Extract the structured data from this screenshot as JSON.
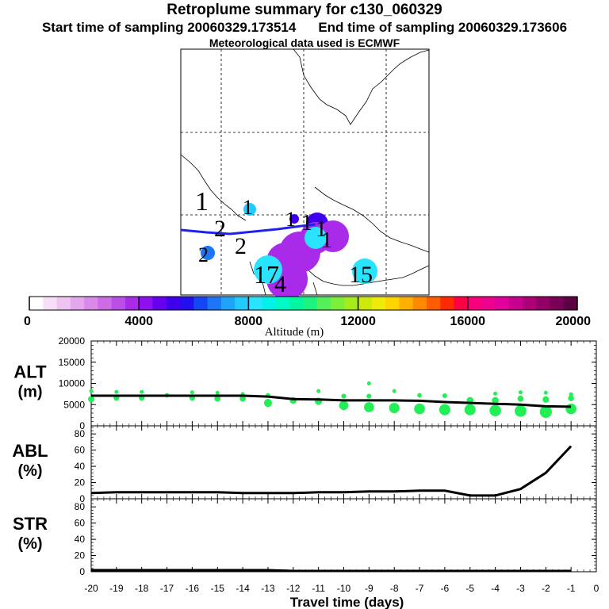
{
  "titles": {
    "line1": "Retroplume summary for c130_060329",
    "start_label": "Start time of sampling 20060329.173514",
    "end_label": "End time of sampling 20060329.173606",
    "line3": "Meteorological data used is ECMWF"
  },
  "map": {
    "labels": [
      "1",
      "1",
      "1",
      "2",
      "2",
      "2",
      "1",
      "1",
      "1",
      "17",
      "4",
      "15"
    ]
  },
  "colorbar": {
    "label": "Altitude (m)",
    "ticks": [
      "0",
      "4000",
      "8000",
      "12000",
      "16000",
      "20000"
    ],
    "min": 0,
    "max": 20000,
    "colors": [
      "#ffffff",
      "#f7e0f7",
      "#efc3ef",
      "#e4a6ec",
      "#d98ae8",
      "#cc6ce6",
      "#bb4ee6",
      "#aa2ae9",
      "#8f10ee",
      "#6600ee",
      "#3f00ee",
      "#2211ee",
      "#1446f4",
      "#1d76f8",
      "#1ea4fa",
      "#21cbfd",
      "#29e4ff",
      "#00f2e8",
      "#00f8c4",
      "#00f7a0",
      "#1cf47e",
      "#52f15a",
      "#7cef38",
      "#a6ec1c",
      "#cdea0c",
      "#efea07",
      "#ffd500",
      "#ffb000",
      "#ff8a00",
      "#ff5e00",
      "#ff2a00",
      "#ff0044",
      "#f7007a",
      "#ee0090",
      "#e0009e",
      "#c8008e",
      "#ad0078",
      "#920066",
      "#780055",
      "#5e0044"
    ]
  },
  "chart_data": [
    {
      "type": "scatter",
      "name": "ALT",
      "ylabel": "ALT\n(m)",
      "xlim": [
        -20,
        0
      ],
      "ylim": [
        0,
        20000
      ],
      "yticks": [
        "0",
        "5000",
        "10000",
        "15000",
        "20000"
      ],
      "line": {
        "x": [
          -20,
          -19,
          -18,
          -17,
          -16,
          -15,
          -14,
          -13,
          -12,
          -11,
          -10,
          -9,
          -8,
          -7,
          -6,
          -5,
          -4,
          -3,
          -2,
          -1
        ],
        "y": [
          7100,
          7100,
          7100,
          7100,
          7100,
          7100,
          7100,
          6900,
          6300,
          6200,
          6000,
          6000,
          6000,
          5900,
          5600,
          5400,
          5200,
          5000,
          4600,
          4500
        ]
      },
      "points": [
        {
          "x": -20,
          "y": 8200
        },
        {
          "x": -20,
          "y": 6300
        },
        {
          "x": -19,
          "y": 8000
        },
        {
          "x": -19,
          "y": 6600
        },
        {
          "x": -18,
          "y": 8000
        },
        {
          "x": -18,
          "y": 6600
        },
        {
          "x": -17,
          "y": 7200
        },
        {
          "x": -16,
          "y": 7900
        },
        {
          "x": -16,
          "y": 6600
        },
        {
          "x": -15,
          "y": 7800
        },
        {
          "x": -15,
          "y": 6400
        },
        {
          "x": -14,
          "y": 7500
        },
        {
          "x": -14,
          "y": 6400
        },
        {
          "x": -13,
          "y": 7200
        },
        {
          "x": -13,
          "y": 5400
        },
        {
          "x": -12,
          "y": 6000
        },
        {
          "x": -11,
          "y": 8200
        },
        {
          "x": -11,
          "y": 5800
        },
        {
          "x": -10,
          "y": 7000
        },
        {
          "x": -10,
          "y": 4800
        },
        {
          "x": -9,
          "y": 10000
        },
        {
          "x": -9,
          "y": 7000
        },
        {
          "x": -9,
          "y": 4400
        },
        {
          "x": -8,
          "y": 8200
        },
        {
          "x": -8,
          "y": 4200
        },
        {
          "x": -7,
          "y": 7200
        },
        {
          "x": -7,
          "y": 4000
        },
        {
          "x": -6,
          "y": 7100
        },
        {
          "x": -6,
          "y": 3800
        },
        {
          "x": -5,
          "y": 6000
        },
        {
          "x": -5,
          "y": 3800
        },
        {
          "x": -4,
          "y": 7600
        },
        {
          "x": -4,
          "y": 6000
        },
        {
          "x": -4,
          "y": 3600
        },
        {
          "x": -3,
          "y": 7900
        },
        {
          "x": -3,
          "y": 6400
        },
        {
          "x": -3,
          "y": 3500
        },
        {
          "x": -2,
          "y": 7800
        },
        {
          "x": -2,
          "y": 6200
        },
        {
          "x": -2,
          "y": 3300
        },
        {
          "x": -1,
          "y": 7400
        },
        {
          "x": -1,
          "y": 6500
        },
        {
          "x": -1,
          "y": 4000
        }
      ]
    },
    {
      "type": "line",
      "name": "ABL",
      "ylabel": "ABL\n(%)",
      "xlim": [
        -20,
        0
      ],
      "ylim": [
        0,
        90
      ],
      "yticks": [
        "0",
        "20",
        "40",
        "60",
        "80"
      ],
      "x": [
        -20,
        -19,
        -18,
        -17,
        -16,
        -15,
        -14,
        -13,
        -12,
        -11,
        -10,
        -9,
        -8,
        -7,
        -6,
        -5,
        -4,
        -3,
        -2,
        -1
      ],
      "y": [
        7,
        8,
        8,
        8,
        8,
        8,
        7,
        7,
        7,
        8,
        8,
        9,
        9,
        10,
        10,
        4,
        4,
        12,
        32,
        65
      ]
    },
    {
      "type": "line",
      "name": "STR",
      "ylabel": "STR\n(%)",
      "xlim": [
        -20,
        0
      ],
      "ylim": [
        0,
        90
      ],
      "yticks": [
        "0",
        "20",
        "40",
        "60",
        "80"
      ],
      "xlabel": "Travel time (days)",
      "xticks": [
        "-20",
        "-19",
        "-18",
        "-17",
        "-16",
        "-15",
        "-14",
        "-13",
        "-12",
        "-11",
        "-10",
        "-9",
        "-8",
        "-7",
        "-6",
        "-5",
        "-4",
        "-3",
        "-2",
        "-1",
        "0"
      ],
      "x": [
        -20,
        -19,
        -18,
        -17,
        -16,
        -15,
        -14,
        -13,
        -12,
        -11,
        -10,
        -9,
        -8,
        -7,
        -6,
        -5,
        -4,
        -3,
        -2,
        -1
      ],
      "y": [
        2,
        2,
        2,
        2,
        2,
        2,
        2,
        2,
        1,
        1,
        1,
        1,
        1,
        1,
        1,
        1,
        1,
        1,
        1,
        1
      ]
    }
  ]
}
